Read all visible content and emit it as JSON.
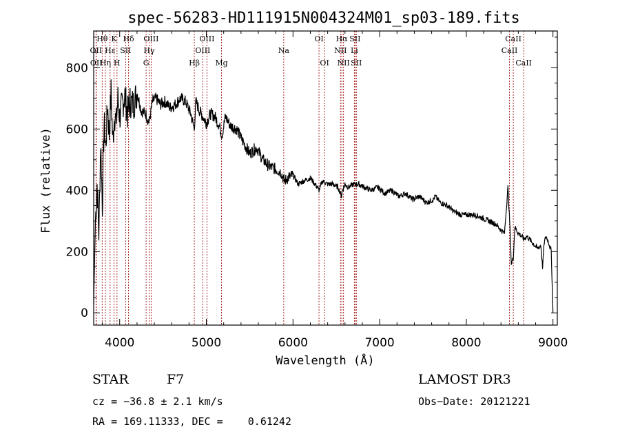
{
  "chart_data": {
    "type": "line",
    "title": "spec-56283-HD111915N004324M01_sp03-189.fits",
    "xlabel": "Wavelength (Å)",
    "ylabel": "Flux (relative)",
    "xlim": [
      3700,
      9050
    ],
    "ylim": [
      -40,
      920
    ],
    "x_ticks": [
      4000,
      5000,
      6000,
      7000,
      8000,
      9000
    ],
    "y_ticks": [
      0,
      200,
      400,
      600,
      800
    ],
    "series": [
      {
        "name": "flux",
        "x": [
          3700,
          3720,
          3740,
          3760,
          3780,
          3800,
          3820,
          3840,
          3860,
          3880,
          3900,
          3920,
          3940,
          3960,
          3980,
          4000,
          4030,
          4060,
          4090,
          4120,
          4160,
          4200,
          4250,
          4300,
          4340,
          4380,
          4420,
          4470,
          4520,
          4580,
          4640,
          4700,
          4760,
          4820,
          4860,
          4880,
          4920,
          4960,
          5000,
          5050,
          5100,
          5150,
          5180,
          5220,
          5280,
          5350,
          5420,
          5500,
          5580,
          5650,
          5720,
          5790,
          5860,
          5900,
          5940,
          6000,
          6060,
          6120,
          6200,
          6280,
          6300,
          6340,
          6400,
          6460,
          6520,
          6560,
          6570,
          6600,
          6640,
          6700,
          6760,
          6820,
          6900,
          6980,
          7060,
          7140,
          7220,
          7300,
          7380,
          7460,
          7540,
          7620,
          7640,
          7700,
          7780,
          7860,
          7940,
          8020,
          8100,
          8180,
          8260,
          8340,
          8400,
          8440,
          8480,
          8500,
          8520,
          8542,
          8560,
          8600,
          8640,
          8662,
          8700,
          8760,
          8820,
          8860,
          8880,
          8900,
          8920,
          8950,
          8980,
          9000
        ],
        "values": [
          30,
          300,
          420,
          260,
          560,
          350,
          620,
          540,
          680,
          580,
          720,
          560,
          650,
          620,
          700,
          640,
          680,
          710,
          650,
          690,
          680,
          720,
          660,
          650,
          620,
          690,
          700,
          680,
          690,
          670,
          680,
          700,
          690,
          650,
          600,
          690,
          660,
          640,
          620,
          650,
          640,
          610,
          580,
          640,
          610,
          600,
          560,
          520,
          540,
          500,
          480,
          470,
          460,
          430,
          440,
          450,
          420,
          430,
          440,
          410,
          400,
          430,
          420,
          420,
          410,
          380,
          400,
          420,
          410,
          420,
          420,
          410,
          400,
          410,
          390,
          400,
          380,
          390,
          370,
          380,
          360,
          370,
          380,
          360,
          350,
          330,
          320,
          320,
          320,
          310,
          300,
          290,
          270,
          260,
          410,
          300,
          160,
          180,
          280,
          260,
          250,
          240,
          250,
          230,
          210,
          220,
          150,
          230,
          250,
          230,
          200,
          0
        ]
      }
    ],
    "spectral_lines": [
      {
        "label": "Hθ",
        "x": 3798,
        "row": 1
      },
      {
        "label": "OII",
        "x": 3727,
        "row": 2
      },
      {
        "label": "OII",
        "x": 3730,
        "row": 3
      },
      {
        "label": "Hη",
        "x": 3835,
        "row": 3
      },
      {
        "label": "Hε",
        "x": 3889,
        "row": 2
      },
      {
        "label": "K",
        "x": 3934,
        "row": 1
      },
      {
        "label": "H",
        "x": 3969,
        "row": 3
      },
      {
        "label": "SII",
        "x": 4069,
        "row": 2
      },
      {
        "label": "Hδ",
        "x": 4102,
        "row": 1
      },
      {
        "label": "OIII",
        "x": 4363,
        "row": 1
      },
      {
        "label": "Hγ",
        "x": 4340,
        "row": 2
      },
      {
        "label": "G",
        "x": 4305,
        "row": 3
      },
      {
        "label": "Hβ",
        "x": 4861,
        "row": 3
      },
      {
        "label": "OIII",
        "x": 5007,
        "row": 1
      },
      {
        "label": "OIII",
        "x": 4959,
        "row": 2
      },
      {
        "label": "Mg",
        "x": 5175,
        "row": 3
      },
      {
        "label": "Na",
        "x": 5893,
        "row": 2
      },
      {
        "label": "OI",
        "x": 6300,
        "row": 1
      },
      {
        "label": "OI",
        "x": 6364,
        "row": 3
      },
      {
        "label": "Hα",
        "x": 6563,
        "row": 1
      },
      {
        "label": "SII",
        "x": 6716,
        "row": 1
      },
      {
        "label": "NII",
        "x": 6548,
        "row": 2
      },
      {
        "label": "Li",
        "x": 6708,
        "row": 2
      },
      {
        "label": "NII",
        "x": 6583,
        "row": 3
      },
      {
        "label": "SII",
        "x": 6731,
        "row": 3
      },
      {
        "label": "CaII",
        "x": 8542,
        "row": 1
      },
      {
        "label": "CaII",
        "x": 8498,
        "row": 2
      },
      {
        "label": "CaII",
        "x": 8662,
        "row": 3
      }
    ],
    "line_color": "#a01010"
  },
  "info": {
    "class": "STAR",
    "subclass": "F7",
    "survey": "LAMOST DR3",
    "cz": "cz = −36.8 ± 2.1 km/s",
    "obs_date": "Obs−Date: 20121221",
    "coords": "RA = 169.11333, DEC =    0.61242"
  }
}
